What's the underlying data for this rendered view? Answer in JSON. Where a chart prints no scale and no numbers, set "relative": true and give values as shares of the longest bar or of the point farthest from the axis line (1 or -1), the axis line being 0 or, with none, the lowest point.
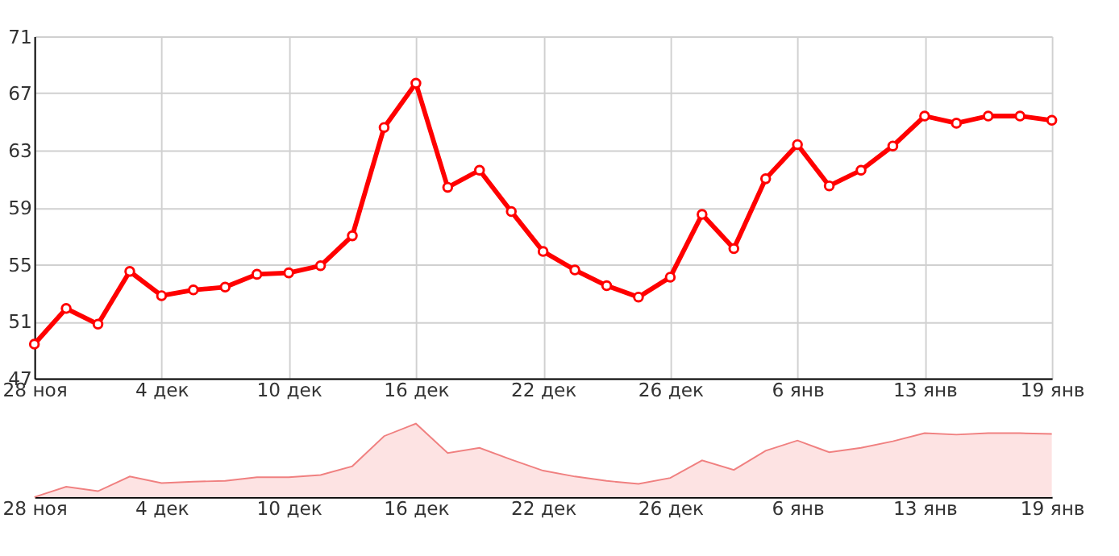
{
  "chart_data": [
    {
      "type": "line",
      "categories": [
        "28 ноя",
        null,
        null,
        null,
        "4 дек",
        null,
        null,
        null,
        "10 дек",
        null,
        null,
        null,
        "16 дек",
        null,
        null,
        null,
        "22 дек",
        null,
        null,
        null,
        "26 дек",
        null,
        null,
        null,
        "6 янв",
        null,
        null,
        null,
        "13 янв",
        null,
        null,
        null,
        "19 янв"
      ],
      "series": [
        {
          "color": "#ff0000",
          "values": [
            49.4,
            51.9,
            50.8,
            54.5,
            52.8,
            53.2,
            53.4,
            54.3,
            54.4,
            54.9,
            57.0,
            64.6,
            67.7,
            60.4,
            61.6,
            58.7,
            55.9,
            54.6,
            53.5,
            52.7,
            54.1,
            58.5,
            56.1,
            61.0,
            63.4,
            60.5,
            61.6,
            63.3,
            65.4,
            64.9,
            65.4,
            65.4,
            65.1
          ]
        }
      ],
      "ylim": [
        47,
        71
      ],
      "yticks": [
        47,
        51,
        55,
        59,
        63,
        67,
        71
      ],
      "grid": true,
      "marker": "circle",
      "line_style": "solid"
    },
    {
      "type": "area",
      "relative": true,
      "categories": [
        "28 ноя",
        null,
        null,
        null,
        "4 дек",
        null,
        null,
        null,
        "10 дек",
        null,
        null,
        null,
        "16 дек",
        null,
        null,
        null,
        "22 дек",
        null,
        null,
        null,
        "26 дек",
        null,
        null,
        null,
        "6 янв",
        null,
        null,
        null,
        "13 янв",
        null,
        null,
        null,
        "19 янв"
      ],
      "series": [
        {
          "color": "#f08080",
          "values": [
            0,
            0.14,
            0.08,
            0.28,
            0.19,
            0.21,
            0.22,
            0.27,
            0.27,
            0.3,
            0.42,
            0.83,
            1,
            0.6,
            0.67,
            0.51,
            0.36,
            0.28,
            0.22,
            0.18,
            0.26,
            0.5,
            0.37,
            0.63,
            0.77,
            0.61,
            0.67,
            0.76,
            0.87,
            0.85,
            0.87,
            0.87,
            0.86
          ]
        }
      ],
      "grid": false,
      "marker": "none"
    }
  ]
}
